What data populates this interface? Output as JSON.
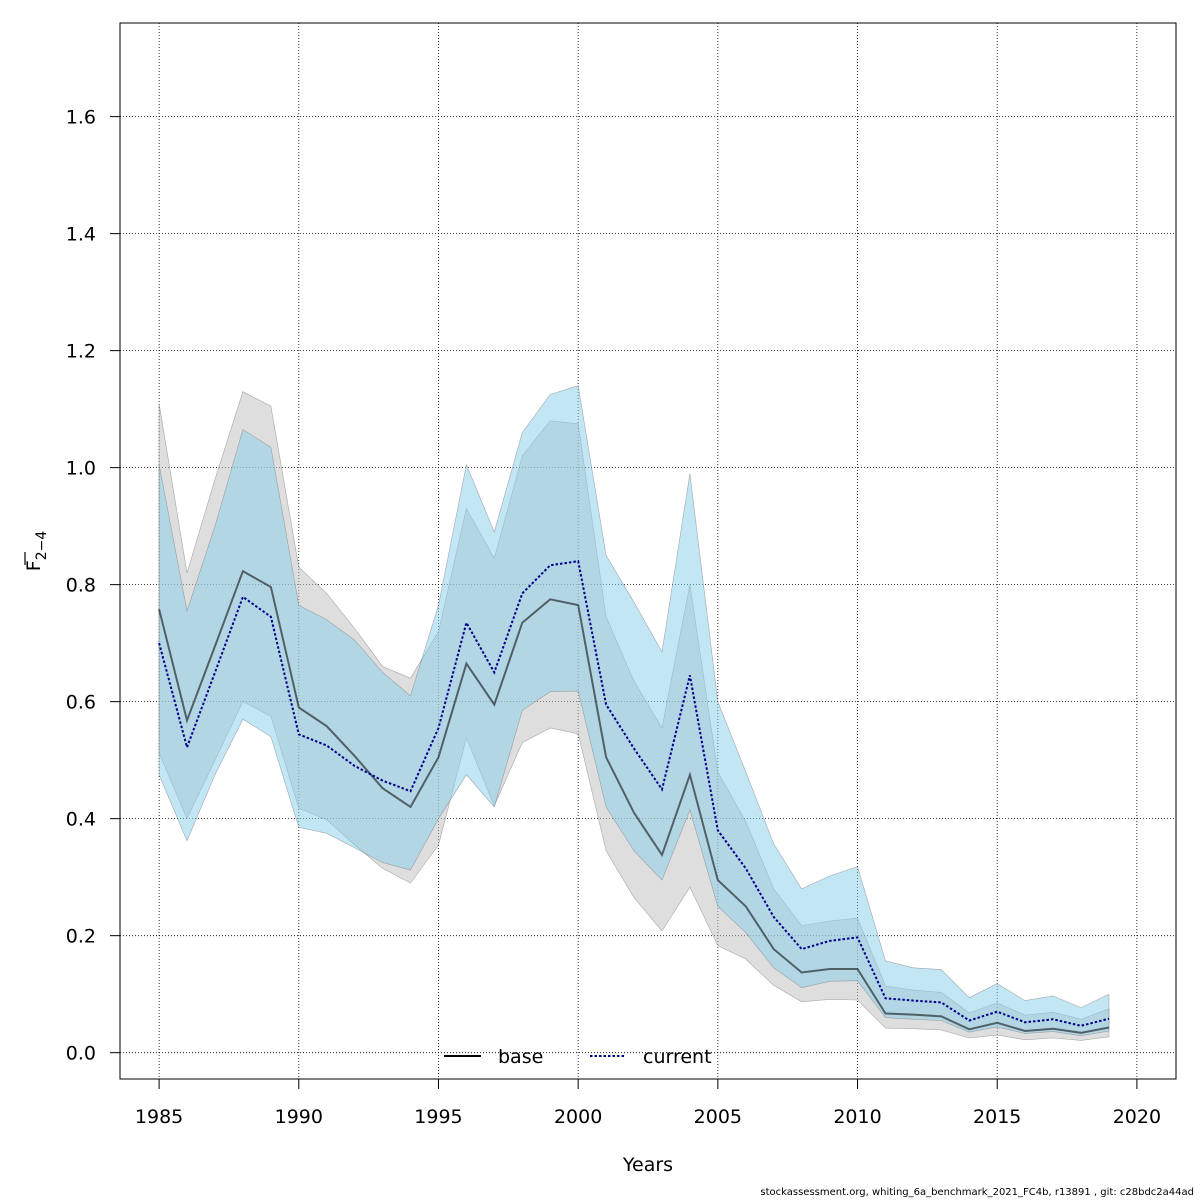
{
  "chart_data": {
    "type": "area",
    "title": "",
    "xlabel": "Years",
    "ylabel": {
      "base": "F",
      "sub": "2−4"
    },
    "xlim": [
      1983.6,
      2021.4
    ],
    "ylim": [
      -0.045,
      1.76
    ],
    "grid": true,
    "legend_position": "bottom",
    "x": [
      1985,
      1986,
      1987,
      1988,
      1989,
      1990,
      1991,
      1992,
      1993,
      1994,
      1995,
      1996,
      1997,
      1998,
      1999,
      2000,
      2001,
      2002,
      2003,
      2004,
      2005,
      2006,
      2007,
      2008,
      2009,
      2010,
      2011,
      2012,
      2013,
      2014,
      2015,
      2016,
      2017,
      2018,
      2019
    ],
    "x_ticks": [
      "1985",
      "1990",
      "1995",
      "2000",
      "2005",
      "2010",
      "2015",
      "2020"
    ],
    "y_ticks": [
      "0.0",
      "0.2",
      "0.4",
      "0.6",
      "0.8",
      "1.0",
      "1.2",
      "1.4",
      "1.6"
    ],
    "series": [
      {
        "name": "base",
        "color": "#000000",
        "band_color": "#bebebe",
        "values": [
          0.758,
          0.568,
          0.695,
          0.823,
          0.796,
          0.59,
          0.558,
          0.507,
          0.452,
          0.42,
          0.505,
          0.665,
          0.595,
          0.735,
          0.775,
          0.765,
          0.505,
          0.41,
          0.338,
          0.475,
          0.295,
          0.25,
          0.177,
          0.137,
          0.143,
          0.143,
          0.067,
          0.065,
          0.062,
          0.04,
          0.051,
          0.037,
          0.041,
          0.034,
          0.043
        ],
        "lower": [
          0.512,
          0.4,
          0.5,
          0.6,
          0.575,
          0.418,
          0.398,
          0.355,
          0.315,
          0.29,
          0.355,
          0.538,
          0.422,
          0.53,
          0.555,
          0.545,
          0.345,
          0.265,
          0.208,
          0.283,
          0.183,
          0.16,
          0.115,
          0.087,
          0.091,
          0.09,
          0.042,
          0.041,
          0.039,
          0.025,
          0.03,
          0.022,
          0.025,
          0.021,
          0.027
        ],
        "upper": [
          1.11,
          0.82,
          0.98,
          1.13,
          1.105,
          0.83,
          0.785,
          0.725,
          0.66,
          0.64,
          0.72,
          0.93,
          0.845,
          1.02,
          1.08,
          1.075,
          0.745,
          0.635,
          0.555,
          0.8,
          0.48,
          0.395,
          0.28,
          0.217,
          0.225,
          0.23,
          0.114,
          0.107,
          0.103,
          0.068,
          0.085,
          0.064,
          0.069,
          0.057,
          0.075
        ]
      },
      {
        "name": "current",
        "color": "#00008b",
        "band_color": "#87ceeb",
        "values": [
          0.7,
          0.522,
          0.65,
          0.779,
          0.745,
          0.544,
          0.525,
          0.49,
          0.465,
          0.447,
          0.555,
          0.735,
          0.65,
          0.785,
          0.833,
          0.84,
          0.595,
          0.52,
          0.45,
          0.645,
          0.38,
          0.315,
          0.232,
          0.177,
          0.191,
          0.197,
          0.093,
          0.089,
          0.086,
          0.055,
          0.07,
          0.052,
          0.057,
          0.046,
          0.058
        ],
        "lower": [
          0.475,
          0.362,
          0.475,
          0.57,
          0.54,
          0.385,
          0.375,
          0.35,
          0.325,
          0.312,
          0.4,
          0.475,
          0.42,
          0.585,
          0.617,
          0.618,
          0.42,
          0.345,
          0.295,
          0.415,
          0.25,
          0.205,
          0.145,
          0.111,
          0.122,
          0.123,
          0.06,
          0.057,
          0.055,
          0.035,
          0.044,
          0.033,
          0.036,
          0.029,
          0.037
        ],
        "upper": [
          1.005,
          0.755,
          0.9,
          1.065,
          1.035,
          0.765,
          0.74,
          0.705,
          0.65,
          0.61,
          0.765,
          1.005,
          0.89,
          1.06,
          1.125,
          1.14,
          0.85,
          0.77,
          0.685,
          0.99,
          0.6,
          0.48,
          0.357,
          0.28,
          0.302,
          0.318,
          0.157,
          0.145,
          0.142,
          0.094,
          0.118,
          0.089,
          0.097,
          0.077,
          0.1
        ]
      }
    ]
  },
  "footer": "stockassessment.org, whiting_6a_benchmark_2021_FC4b, r13891 , git: c28bdc2a44ad"
}
